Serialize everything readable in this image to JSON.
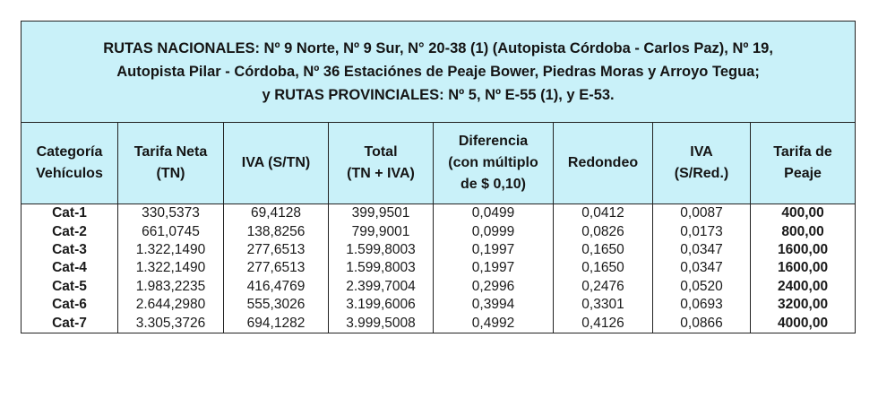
{
  "title_lines": [
    "RUTAS NACIONALES: Nº 9 Norte, Nº 9 Sur, N° 20-38 (1) (Autopista Córdoba - Carlos Paz), Nº 19,",
    "Autopista Pilar - Córdoba, Nº 36 Estaciónes de Peaje Bower, Piedras Moras y Arroyo Tegua;",
    "y RUTAS PROVINCIALES: Nº 5, Nº E-55 (1), y E-53."
  ],
  "headers": [
    [
      "Categoría",
      "Vehículos"
    ],
    [
      "Tarifa  Neta",
      "(TN)"
    ],
    [
      "IVA (S/TN)"
    ],
    [
      "Total",
      "(TN + IVA)"
    ],
    [
      "Diferencia",
      "(con múltiplo",
      "de $ 0,10)"
    ],
    [
      "Redondeo"
    ],
    [
      "IVA",
      "(S/Red.)"
    ],
    [
      "Tarifa   de",
      "Peaje"
    ]
  ],
  "rows": [
    [
      "Cat-1",
      "330,5373",
      "69,4128",
      "399,9501",
      "0,0499",
      "0,0412",
      "0,0087",
      "400,00"
    ],
    [
      "Cat-2",
      "661,0745",
      "138,8256",
      "799,9001",
      "0,0999",
      "0,0826",
      "0,0173",
      "800,00"
    ],
    [
      "Cat-3",
      "1.322,1490",
      "277,6513",
      "1.599,8003",
      "0,1997",
      "0,1650",
      "0,0347",
      "1600,00"
    ],
    [
      "Cat-4",
      "1.322,1490",
      "277,6513",
      "1.599,8003",
      "0,1997",
      "0,1650",
      "0,0347",
      "1600,00"
    ],
    [
      "Cat-5",
      "1.983,2235",
      "416,4769",
      "2.399,7004",
      "0,2996",
      "0,2476",
      "0,0520",
      "2400,00"
    ],
    [
      "Cat-6",
      "2.644,2980",
      "555,3026",
      "3.199,6006",
      "0,3994",
      "0,3301",
      "0,0693",
      "3200,00"
    ],
    [
      "Cat-7",
      "3.305,3726",
      "694,1282",
      "3.999,5008",
      "0,4992",
      "0,4126",
      "0,0866",
      "4000,00"
    ]
  ],
  "colors": {
    "header_bg": "#c9f1f9",
    "border": "#222222"
  }
}
